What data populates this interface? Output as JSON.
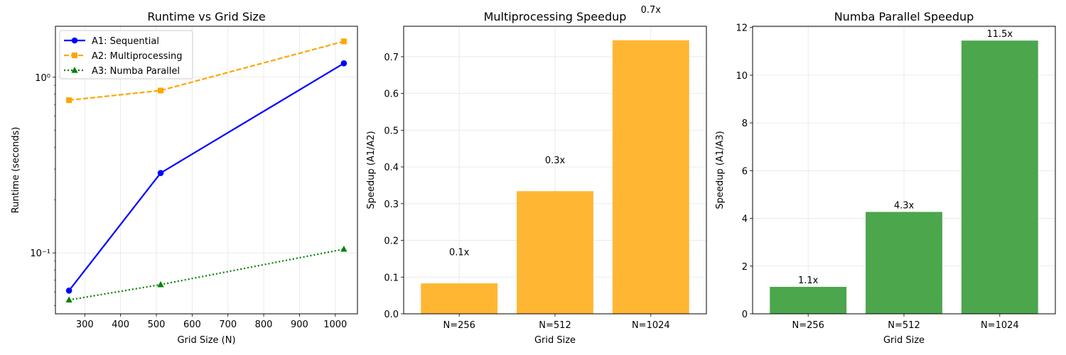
{
  "chart_data": [
    {
      "type": "line",
      "title": "Runtime vs Grid Size",
      "xlabel": "Grid Size (N)",
      "ylabel": "Runtime (seconds)",
      "yscale": "log",
      "xlim": [
        218,
        1062
      ],
      "ylim": [
        0.045,
        1.95
      ],
      "xticks": [
        300,
        400,
        500,
        600,
        700,
        800,
        900,
        1000
      ],
      "yticks": [
        {
          "value": 0.1,
          "label": "10⁻¹"
        },
        {
          "value": 1,
          "label": "10⁰"
        }
      ],
      "grid": true,
      "legend": "upper-left",
      "x": [
        256,
        512,
        1024
      ],
      "series": [
        {
          "name": "A1: Sequential",
          "values": [
            0.061,
            0.285,
            1.2
          ],
          "color": "#0000ff",
          "marker": "circle",
          "linestyle": "solid"
        },
        {
          "name": "A2: Multiprocessing",
          "values": [
            0.74,
            0.84,
            1.6
          ],
          "color": "#ffa500",
          "marker": "square",
          "linestyle": "dashed"
        },
        {
          "name": "A3: Numba Parallel",
          "values": [
            0.054,
            0.066,
            0.105
          ],
          "color": "#008000",
          "marker": "triangle",
          "linestyle": "dotted"
        }
      ]
    },
    {
      "type": "bar",
      "title": "Multiprocessing Speedup",
      "xlabel": "Grid Size",
      "ylabel": "Speedup (A1/A2)",
      "categories": [
        "N=256",
        "N=512",
        "N=1024"
      ],
      "values": [
        0.083,
        0.334,
        0.745
      ],
      "data_labels": [
        "0.1x",
        "0.3x",
        "0.7x"
      ],
      "label_values": [
        0.15,
        0.4,
        0.81
      ],
      "ylim": [
        0,
        0.783
      ],
      "yticks": [
        0.0,
        0.1,
        0.2,
        0.3,
        0.4,
        0.5,
        0.6,
        0.7
      ],
      "ytick_labels": [
        "0.0",
        "0.1",
        "0.2",
        "0.3",
        "0.4",
        "0.5",
        "0.6",
        "0.7"
      ],
      "color": "#ffb733",
      "grid": true
    },
    {
      "type": "bar",
      "title": "Numba Parallel Speedup",
      "xlabel": "Grid Size",
      "ylabel": "Speedup (A1/A3)",
      "categories": [
        "N=256",
        "N=512",
        "N=1024"
      ],
      "values": [
        1.13,
        4.27,
        11.45
      ],
      "data_labels": [
        "1.1x",
        "4.3x",
        "11.5x"
      ],
      "label_values": [
        1.13,
        4.27,
        11.45
      ],
      "ylim": [
        0,
        12.05
      ],
      "yticks": [
        0,
        2,
        4,
        6,
        8,
        10,
        12
      ],
      "ytick_labels": [
        "0",
        "2",
        "4",
        "6",
        "8",
        "10",
        "12"
      ],
      "color": "#4ca64c",
      "grid": true
    }
  ]
}
